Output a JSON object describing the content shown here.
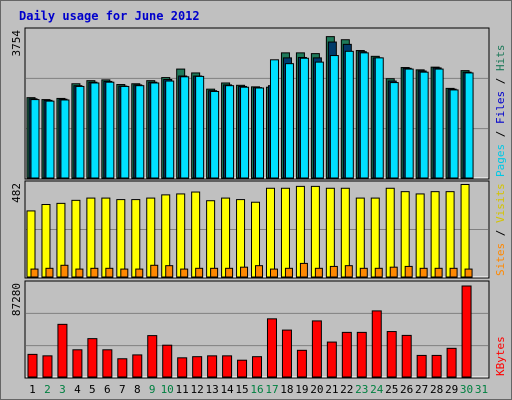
{
  "title": "Daily usage for June 2012",
  "colors": {
    "hits": "#1e7a5a",
    "files": "#00e0ff",
    "pages": "#003a6a",
    "visits": "#ffff00",
    "sites": "#ff8800",
    "kbytes": "#ff0000",
    "weekend_day": "#008040",
    "weekday": "#000000",
    "pages_label": "#00c8e6",
    "files_label": "#0000cc",
    "hits_label": "#1e7a5a",
    "sites_label": "#ff8800",
    "visits_label": "#d4c400",
    "kbytes_label": "#ff0000"
  },
  "chart_data": [
    {
      "type": "bar",
      "title": "Daily usage for June 2012",
      "categories": [
        "1",
        "2",
        "3",
        "4",
        "5",
        "6",
        "7",
        "8",
        "9",
        "10",
        "11",
        "12",
        "13",
        "14",
        "15",
        "16",
        "17",
        "18",
        "19",
        "20",
        "21",
        "22",
        "23",
        "24",
        "25",
        "26",
        "27",
        "28",
        "29",
        "30",
        "31"
      ],
      "weekend_days": [
        "2",
        "3",
        "9",
        "10",
        "16",
        "17",
        "23",
        "24",
        "30",
        "31"
      ],
      "ymax_label": "3754",
      "ylim": [
        0,
        3754
      ],
      "right_label_parts": [
        "Pages",
        "Files",
        "Hits"
      ],
      "right_label_separator": " / ",
      "series": [
        {
          "name": "Hits",
          "values": [
            2080,
            2030,
            2060,
            2440,
            2520,
            2540,
            2420,
            2440,
            2520,
            2600,
            2820,
            2720,
            2300,
            2460,
            2400,
            2360,
            2350,
            3240,
            3240,
            3220,
            3660,
            3580,
            3300,
            3150,
            2570,
            2860,
            2800,
            2870,
            2320,
            2780,
            null
          ]
        },
        {
          "name": "Files",
          "values": [
            2030,
            1990,
            2020,
            2370,
            2460,
            2480,
            2370,
            2390,
            2460,
            2510,
            2620,
            2630,
            2240,
            2390,
            2350,
            2330,
            3060,
            2960,
            3100,
            3000,
            3170,
            3280,
            3240,
            3110,
            2470,
            2820,
            2740,
            2820,
            2280,
            2720,
            null
          ]
        },
        {
          "name": "Pages",
          "values": [
            2050,
            2010,
            2040,
            2390,
            2480,
            2500,
            2380,
            2410,
            2480,
            2550,
            2640,
            2640,
            2260,
            2410,
            2370,
            2340,
            2390,
            3110,
            3120,
            3110,
            3520,
            3460,
            3270,
            3110,
            2510,
            2840,
            2770,
            2850,
            2300,
            2740,
            null
          ]
        }
      ]
    },
    {
      "type": "bar",
      "categories": [
        "1",
        "2",
        "3",
        "4",
        "5",
        "6",
        "7",
        "8",
        "9",
        "10",
        "11",
        "12",
        "13",
        "14",
        "15",
        "16",
        "17",
        "18",
        "19",
        "20",
        "21",
        "22",
        "23",
        "24",
        "25",
        "26",
        "27",
        "28",
        "29",
        "30",
        "31"
      ],
      "ymax_label": "482",
      "ylim": [
        0,
        482
      ],
      "right_label_parts": [
        "Sites",
        "Visits"
      ],
      "right_label_separator": " / ",
      "series": [
        {
          "name": "Visits",
          "values": [
            350,
            384,
            390,
            406,
            418,
            418,
            410,
            410,
            418,
            435,
            440,
            450,
            404,
            418,
            410,
            396,
            470,
            470,
            480,
            480,
            470,
            470,
            418,
            418,
            470,
            452,
            440,
            452,
            452,
            490,
            null
          ]
        },
        {
          "name": "Sites",
          "values": [
            42,
            46,
            62,
            42,
            46,
            46,
            42,
            42,
            62,
            60,
            42,
            46,
            46,
            46,
            52,
            60,
            42,
            46,
            72,
            46,
            56,
            60,
            46,
            46,
            52,
            56,
            46,
            46,
            46,
            42,
            null
          ]
        }
      ]
    },
    {
      "type": "bar",
      "categories": [
        "1",
        "2",
        "3",
        "4",
        "5",
        "6",
        "7",
        "8",
        "9",
        "10",
        "11",
        "12",
        "13",
        "14",
        "15",
        "16",
        "17",
        "18",
        "19",
        "20",
        "21",
        "22",
        "23",
        "24",
        "25",
        "26",
        "27",
        "28",
        "29",
        "30",
        "31"
      ],
      "ymax_label": "87280",
      "ylim": [
        0,
        87280
      ],
      "right_label_parts": [
        "KBytes"
      ],
      "right_label_separator": "",
      "series": [
        {
          "name": "KBytes",
          "values": [
            21700,
            20300,
            50500,
            26100,
            36800,
            26100,
            17500,
            21200,
            39700,
            30500,
            18400,
            19500,
            20300,
            20300,
            16100,
            19500,
            55800,
            45000,
            25600,
            53800,
            33500,
            42800,
            42800,
            63400,
            43600,
            39900,
            20700,
            20700,
            27500,
            87280,
            null
          ]
        }
      ]
    }
  ]
}
